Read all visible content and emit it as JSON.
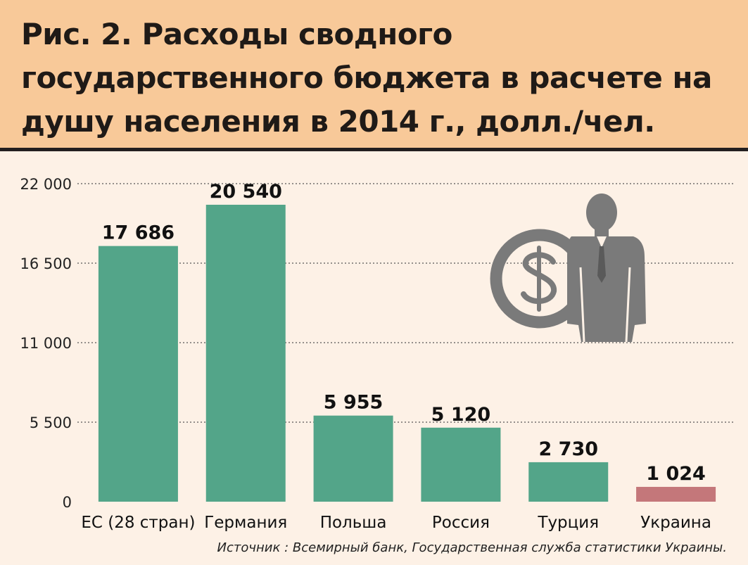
{
  "title": "Рис. 2. Расходы сводного государственного бюджета в расчете на душу населения в 2014 г., долл./чел.",
  "source": "Источник : Всемирный банк, Государственная служба статистики Украины.",
  "colors": {
    "bar": "#53a589",
    "highlight": "#c4777a",
    "header_bg": "#f8c999",
    "page_bg": "#fdf1e6",
    "icon": "#7a7a7a"
  },
  "icons": [
    "dollar-coin-icon",
    "businessman-silhouette-icon"
  ],
  "chart_data": {
    "type": "bar",
    "title": "Рис. 2. Расходы сводного государственного бюджета в расчете на душу населения в 2014 г., долл./чел.",
    "categories": [
      "ЕС (28 стран)",
      "Германия",
      "Польша",
      "Россия",
      "Турция",
      "Украина"
    ],
    "values": [
      17686,
      20540,
      5955,
      5120,
      2730,
      1024
    ],
    "value_labels": [
      "17 686",
      "20 540",
      "5 955",
      "5 120",
      "2 730",
      "1 024"
    ],
    "highlight_index": 5,
    "ylim": [
      0,
      22000
    ],
    "yticks": [
      0,
      5500,
      11000,
      16500,
      22000
    ],
    "ytick_labels": [
      "0",
      "5 500",
      "11 000",
      "16 500",
      "22 000"
    ],
    "grid": true,
    "legend": "none"
  }
}
